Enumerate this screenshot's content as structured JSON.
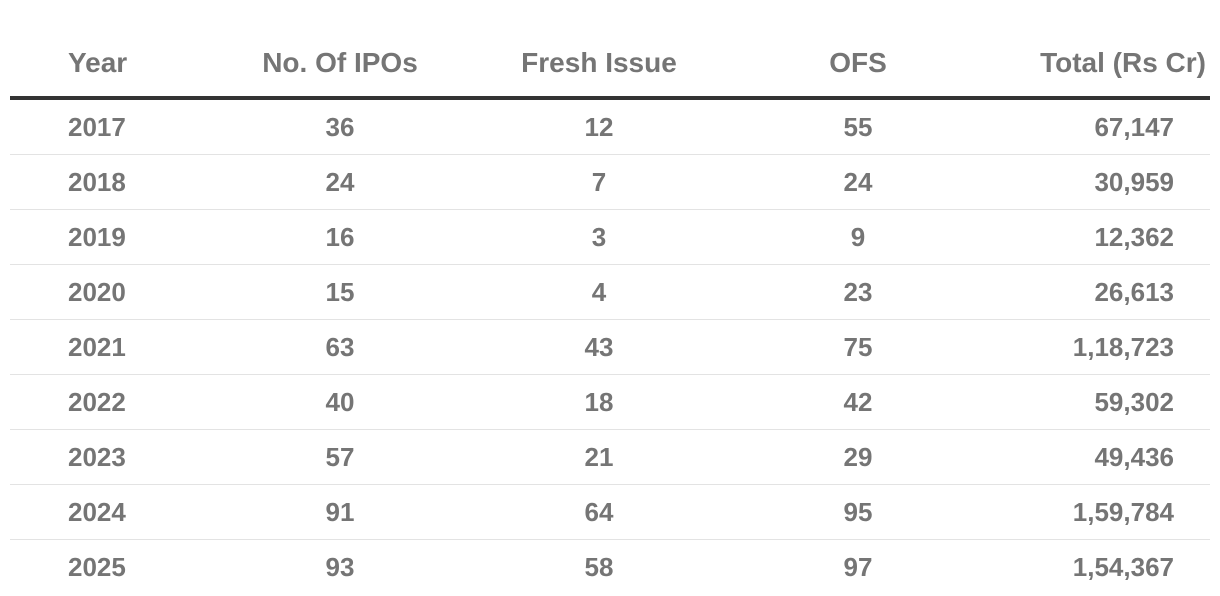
{
  "chart_data": {
    "type": "table",
    "columns": [
      "Year",
      "No. Of IPOs",
      "Fresh Issue",
      "OFS",
      "Total (Rs Cr)"
    ],
    "rows": [
      [
        "2017",
        "36",
        "12",
        "55",
        "67,147"
      ],
      [
        "2018",
        "24",
        "7",
        "24",
        "30,959"
      ],
      [
        "2019",
        "16",
        "3",
        "9",
        "12,362"
      ],
      [
        "2020",
        "15",
        "4",
        "23",
        "26,613"
      ],
      [
        "2021",
        "63",
        "43",
        "75",
        "1,18,723"
      ],
      [
        "2022",
        "40",
        "18",
        "42",
        "59,302"
      ],
      [
        "2023",
        "57",
        "21",
        "29",
        "49,436"
      ],
      [
        "2024",
        "91",
        "64",
        "95",
        "1,59,784"
      ],
      [
        "2025",
        "93",
        "58",
        "97",
        "1,54,367"
      ]
    ]
  },
  "colors": {
    "text": "#757575",
    "header_rule": "#333333",
    "row_divider": "#e3e3e3",
    "background": "#ffffff"
  }
}
